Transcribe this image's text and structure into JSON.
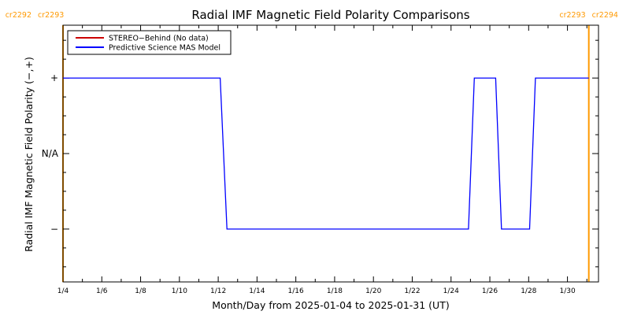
{
  "chart_data": {
    "type": "line",
    "title": "Radial IMF Magnetic Field Polarity Comparisons",
    "xlabel": "Month/Day from 2025-01-04 to 2025-01-31 (UT)",
    "ylabel": "Radial IMF Magnetic Field Polarity (−,+)",
    "xlim": [
      4,
      31.6
    ],
    "ylim": [
      -1.7,
      1.7
    ],
    "x_ticks": [
      {
        "x": 4,
        "label": "1/4"
      },
      {
        "x": 6,
        "label": "1/6"
      },
      {
        "x": 8,
        "label": "1/8"
      },
      {
        "x": 10,
        "label": "1/10"
      },
      {
        "x": 12,
        "label": "1/12"
      },
      {
        "x": 14,
        "label": "1/14"
      },
      {
        "x": 16,
        "label": "1/16"
      },
      {
        "x": 18,
        "label": "1/18"
      },
      {
        "x": 20,
        "label": "1/20"
      },
      {
        "x": 22,
        "label": "1/22"
      },
      {
        "x": 24,
        "label": "1/24"
      },
      {
        "x": 26,
        "label": "1/26"
      },
      {
        "x": 28,
        "label": "1/28"
      },
      {
        "x": 30,
        "label": "1/30"
      }
    ],
    "y_ticks": [
      {
        "y": 1,
        "label": "+"
      },
      {
        "y": 0,
        "label": "N/A"
      },
      {
        "y": -1,
        "label": "−"
      }
    ],
    "legend": {
      "placement": "top-left",
      "entries": [
        {
          "name": "STEREO−Behind (No data)",
          "color": "#cc0000"
        },
        {
          "name": "Predictive Science MAS Model",
          "color": "#0000ff"
        }
      ]
    },
    "series": [
      {
        "name": "STEREO−Behind (No data)",
        "color": "#cc0000",
        "x": [],
        "y": []
      },
      {
        "name": "Predictive Science MAS Model",
        "color": "#0000ff",
        "x": [
          4.0,
          12.1,
          12.45,
          24.9,
          25.2,
          26.3,
          26.6,
          28.05,
          28.35,
          31.1
        ],
        "y": [
          1,
          1,
          -1,
          -1,
          1,
          1,
          -1,
          -1,
          1,
          1
        ]
      }
    ],
    "carrington_markers": [
      {
        "x": 4.0,
        "label_left": "cr2292",
        "label_right": "cr2293",
        "side": "left"
      },
      {
        "x": 31.1,
        "label_left": "cr2293",
        "label_right": "cr2294",
        "side": "right"
      }
    ],
    "marker_color": "#ff9900",
    "grid": false
  }
}
